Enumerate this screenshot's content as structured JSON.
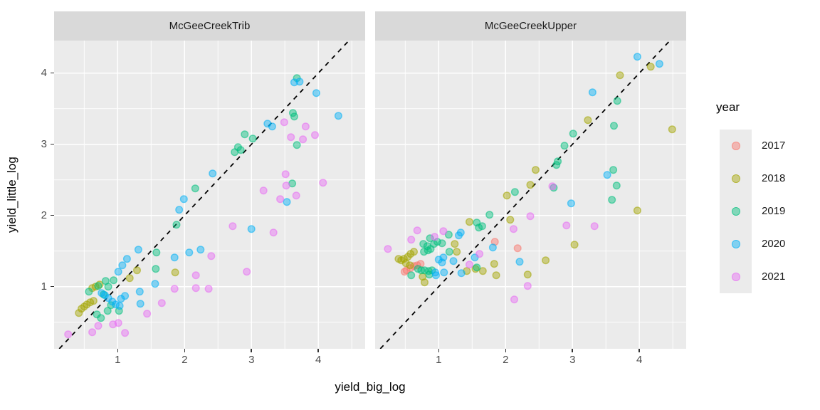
{
  "chart_data": {
    "type": "scatter",
    "xlabel": "yield_big_log",
    "ylabel": "yield_little_log",
    "x_domain": [
      0.05,
      4.7
    ],
    "y_domain": [
      0.127,
      4.457
    ],
    "x_ticks": [
      1,
      2,
      3,
      4
    ],
    "y_ticks": [
      1,
      2,
      3,
      4
    ],
    "x_minor_ticks": [
      0.5,
      1.5,
      2.5,
      3.5,
      4.5
    ],
    "y_minor_ticks": [
      0.5,
      1.5,
      2.5,
      3.5
    ],
    "grid": "on",
    "panel_background": "#ebebeb",
    "strip_background": "#d9d9d9",
    "gridline_color": "#ffffff",
    "point_alpha": 0.5,
    "reference_line": {
      "type": "identity y=x",
      "style": "dashed",
      "color": "#000000"
    },
    "legend": {
      "title": "year",
      "position": "right",
      "entries": [
        {
          "label": "2017",
          "color": "#F8766D"
        },
        {
          "label": "2018",
          "color": "#A3A500"
        },
        {
          "label": "2019",
          "color": "#00BF7D"
        },
        {
          "label": "2020",
          "color": "#00B0F6"
        },
        {
          "label": "2021",
          "color": "#E76BF3"
        }
      ]
    },
    "facets": [
      {
        "label": "McGeeCreekTrib",
        "series": [
          {
            "year": "2017",
            "points": []
          },
          {
            "year": "2018",
            "points": [
              [
                0.42,
                0.63
              ],
              [
                0.46,
                0.69
              ],
              [
                0.5,
                0.72
              ],
              [
                0.54,
                0.75
              ],
              [
                0.59,
                0.78
              ],
              [
                0.64,
                0.8
              ],
              [
                0.62,
                0.98
              ],
              [
                0.67,
                1.0
              ],
              [
                0.73,
                1.03
              ],
              [
                1.18,
                1.12
              ],
              [
                1.29,
                1.23
              ],
              [
                1.86,
                1.2
              ]
            ]
          },
          {
            "year": "2019",
            "points": [
              [
                0.57,
                0.93
              ],
              [
                0.69,
                0.61
              ],
              [
                0.71,
                1.01
              ],
              [
                0.75,
                0.56
              ],
              [
                0.79,
                0.89
              ],
              [
                0.82,
                1.08
              ],
              [
                0.86,
                1.0
              ],
              [
                0.9,
                0.74
              ],
              [
                0.94,
                1.09
              ],
              [
                0.85,
                0.66
              ],
              [
                1.02,
                0.66
              ],
              [
                1.57,
                1.25
              ],
              [
                1.58,
                1.48
              ],
              [
                1.88,
                1.87
              ],
              [
                2.16,
                2.38
              ],
              [
                2.75,
                2.89
              ],
              [
                2.8,
                2.96
              ],
              [
                2.84,
                2.92
              ],
              [
                2.9,
                3.14
              ],
              [
                3.02,
                3.08
              ],
              [
                3.61,
                2.45
              ],
              [
                3.68,
                2.99
              ],
              [
                3.62,
                3.44
              ],
              [
                3.64,
                3.39
              ],
              [
                3.68,
                3.93
              ]
            ]
          },
          {
            "year": "2020",
            "points": [
              [
                0.76,
                0.91
              ],
              [
                0.81,
                0.88
              ],
              [
                0.86,
                0.84
              ],
              [
                0.92,
                0.79
              ],
              [
                0.97,
                0.75
              ],
              [
                1.03,
                0.73
              ],
              [
                1.05,
                0.83
              ],
              [
                1.11,
                0.87
              ],
              [
                1.01,
                1.21
              ],
              [
                1.07,
                1.3
              ],
              [
                1.14,
                1.39
              ],
              [
                1.31,
                1.52
              ],
              [
                1.33,
                0.93
              ],
              [
                1.34,
                0.76
              ],
              [
                1.56,
                1.04
              ],
              [
                1.85,
                1.41
              ],
              [
                1.92,
                2.08
              ],
              [
                1.99,
                2.23
              ],
              [
                2.07,
                1.48
              ],
              [
                2.24,
                1.52
              ],
              [
                2.42,
                2.59
              ],
              [
                3.0,
                1.81
              ],
              [
                3.24,
                3.29
              ],
              [
                3.31,
                3.25
              ],
              [
                3.53,
                2.19
              ],
              [
                3.64,
                3.87
              ],
              [
                3.72,
                3.88
              ],
              [
                3.97,
                3.72
              ],
              [
                4.3,
                3.4
              ]
            ]
          },
          {
            "year": "2021",
            "points": [
              [
                0.26,
                0.33
              ],
              [
                0.62,
                0.36
              ],
              [
                0.71,
                0.45
              ],
              [
                0.93,
                0.47
              ],
              [
                1.01,
                0.49
              ],
              [
                1.11,
                0.35
              ],
              [
                1.44,
                0.62
              ],
              [
                1.66,
                0.77
              ],
              [
                1.85,
                0.97
              ],
              [
                2.17,
                0.98
              ],
              [
                2.36,
                0.97
              ],
              [
                2.17,
                1.16
              ],
              [
                2.93,
                1.21
              ],
              [
                2.4,
                1.43
              ],
              [
                2.72,
                1.85
              ],
              [
                3.33,
                1.76
              ],
              [
                3.18,
                2.35
              ],
              [
                3.43,
                2.23
              ],
              [
                3.52,
                2.42
              ],
              [
                3.67,
                2.28
              ],
              [
                4.07,
                2.46
              ],
              [
                3.51,
                2.58
              ],
              [
                3.49,
                3.31
              ],
              [
                3.59,
                3.1
              ],
              [
                3.77,
                3.07
              ],
              [
                3.81,
                3.25
              ],
              [
                3.95,
                3.13
              ]
            ]
          }
        ]
      },
      {
        "label": "McGeeCreekUpper",
        "series": [
          {
            "year": "2017",
            "points": [
              [
                0.49,
                1.21
              ],
              [
                0.52,
                1.23
              ],
              [
                0.58,
                1.26
              ],
              [
                0.63,
                1.29
              ],
              [
                0.68,
                1.3
              ],
              [
                0.73,
                1.32
              ],
              [
                1.84,
                1.63
              ],
              [
                2.18,
                1.54
              ]
            ]
          },
          {
            "year": "2018",
            "points": [
              [
                0.4,
                1.39
              ],
              [
                0.44,
                1.37
              ],
              [
                0.48,
                1.39
              ],
              [
                0.51,
                1.33
              ],
              [
                0.54,
                1.42
              ],
              [
                0.57,
                1.3
              ],
              [
                0.58,
                1.46
              ],
              [
                0.63,
                1.49
              ],
              [
                0.76,
                1.14
              ],
              [
                0.79,
                1.06
              ],
              [
                1.24,
                1.6
              ],
              [
                1.27,
                1.49
              ],
              [
                1.42,
                1.22
              ],
              [
                1.46,
                1.91
              ],
              [
                1.55,
                1.25
              ],
              [
                1.66,
                1.22
              ],
              [
                1.83,
                1.32
              ],
              [
                1.86,
                1.16
              ],
              [
                2.07,
                1.94
              ],
              [
                2.02,
                2.28
              ],
              [
                2.37,
                2.43
              ],
              [
                2.45,
                2.64
              ],
              [
                2.33,
                1.17
              ],
              [
                2.6,
                1.37
              ],
              [
                3.03,
                1.59
              ],
              [
                3.23,
                3.34
              ],
              [
                3.71,
                3.97
              ],
              [
                4.17,
                4.09
              ],
              [
                4.49,
                3.21
              ],
              [
                3.97,
                2.07
              ]
            ]
          },
          {
            "year": "2019",
            "points": [
              [
                0.59,
                1.16
              ],
              [
                0.69,
                1.25
              ],
              [
                0.74,
                1.23
              ],
              [
                0.77,
                1.6
              ],
              [
                0.78,
                1.49
              ],
              [
                0.79,
                1.23
              ],
              [
                0.83,
                1.57
              ],
              [
                0.84,
                1.51
              ],
              [
                0.85,
                1.22
              ],
              [
                0.86,
                1.17
              ],
              [
                0.87,
                1.68
              ],
              [
                0.88,
                1.53
              ],
              [
                0.9,
                1.23
              ],
              [
                0.93,
                1.6
              ],
              [
                0.98,
                1.63
              ],
              [
                1.05,
                1.61
              ],
              [
                1.15,
                1.73
              ],
              [
                1.16,
                1.49
              ],
              [
                1.57,
                1.9
              ],
              [
                1.57,
                1.27
              ],
              [
                1.6,
                1.83
              ],
              [
                1.65,
                1.85
              ],
              [
                1.76,
                2.01
              ],
              [
                2.14,
                2.33
              ],
              [
                2.72,
                2.39
              ],
              [
                2.76,
                2.71
              ],
              [
                2.78,
                2.76
              ],
              [
                2.88,
                2.98
              ],
              [
                3.01,
                3.15
              ],
              [
                3.59,
                2.22
              ],
              [
                3.61,
                2.64
              ],
              [
                3.62,
                3.26
              ],
              [
                3.66,
                2.42
              ],
              [
                3.67,
                3.61
              ]
            ]
          },
          {
            "year": "2020",
            "points": [
              [
                0.95,
                1.2
              ],
              [
                0.96,
                1.16
              ],
              [
                1.0,
                1.38
              ],
              [
                1.05,
                1.34
              ],
              [
                1.07,
                1.41
              ],
              [
                1.08,
                1.2
              ],
              [
                1.22,
                1.36
              ],
              [
                1.3,
                1.72
              ],
              [
                1.33,
                1.76
              ],
              [
                1.34,
                1.19
              ],
              [
                1.54,
                1.41
              ],
              [
                1.81,
                1.55
              ],
              [
                2.21,
                1.35
              ],
              [
                2.98,
                2.17
              ],
              [
                3.3,
                3.73
              ],
              [
                3.52,
                2.57
              ],
              [
                3.97,
                4.23
              ],
              [
                4.3,
                4.13
              ]
            ]
          },
          {
            "year": "2021",
            "points": [
              [
                0.24,
                1.53
              ],
              [
                0.59,
                1.66
              ],
              [
                0.68,
                1.79
              ],
              [
                0.94,
                1.7
              ],
              [
                1.07,
                1.78
              ],
              [
                1.46,
                1.31
              ],
              [
                1.61,
                1.46
              ],
              [
                2.12,
                1.81
              ],
              [
                2.37,
                1.99
              ],
              [
                2.91,
                1.86
              ],
              [
                3.33,
                1.85
              ],
              [
                2.33,
                1.01
              ],
              [
                2.13,
                0.82
              ],
              [
                2.7,
                2.41
              ]
            ]
          }
        ]
      }
    ]
  }
}
